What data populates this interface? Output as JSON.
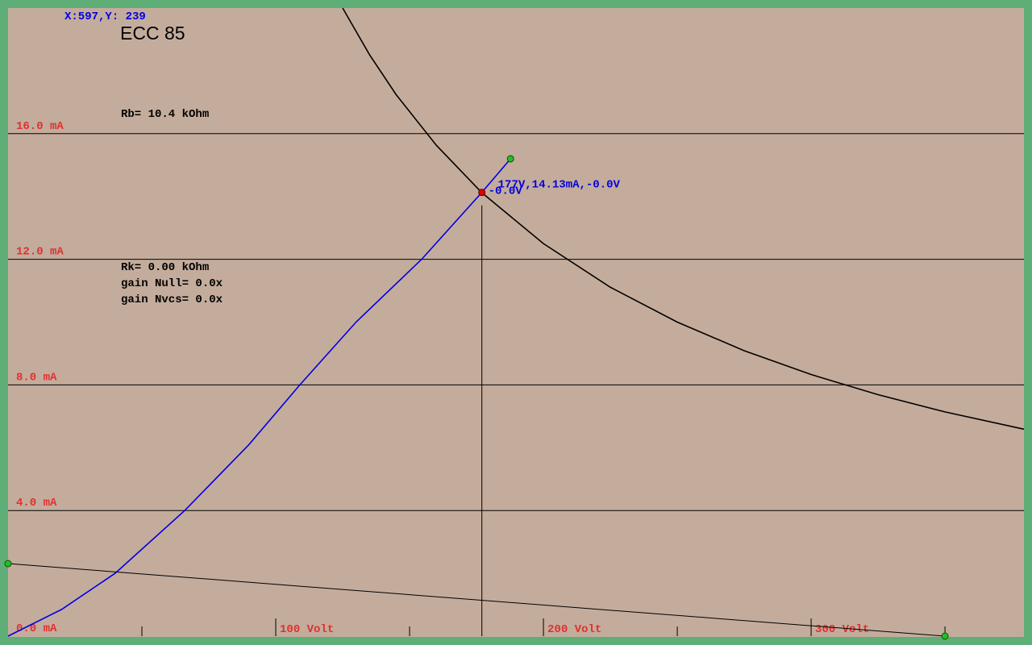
{
  "chart_data": {
    "type": "line",
    "title": "ECC 85",
    "cursor_readout": "X:597,Y: 239",
    "info_top": [
      "Rb= 10.4 kOhm"
    ],
    "info_mid": [
      "Rk= 0.00 kOhm",
      "gain Null= 0.0x",
      "gain Nvcs= 0.0x"
    ],
    "xlim": [
      0,
      379.5
    ],
    "ylim": [
      0,
      20
    ],
    "xticks": [
      {
        "value": 100,
        "label": "100 Volt"
      },
      {
        "value": 200,
        "label": "200 Volt"
      },
      {
        "value": 300,
        "label": "300 Volt"
      }
    ],
    "xminor_ticks": [
      50,
      150,
      250,
      350
    ],
    "yticks": [
      {
        "value": 0,
        "label": "0.0 mA"
      },
      {
        "value": 4,
        "label": "4.0 mA"
      },
      {
        "value": 8,
        "label": "8.0 mA"
      },
      {
        "value": 12,
        "label": "12.0 mA"
      },
      {
        "value": 16,
        "label": "16.0 mA"
      }
    ],
    "grid": true,
    "series": [
      {
        "color": "#0000e0",
        "x": [
          0,
          20,
          40,
          66,
          90,
          109,
          130,
          154.5,
          177,
          187.7
        ],
        "values": [
          0,
          0.85,
          2.0,
          4.0,
          6.1,
          8.0,
          10.0,
          12.0,
          14.13,
          15.2
        ],
        "endpoints": true
      },
      {
        "color": "#000000",
        "x": [
          125,
          135,
          145,
          160,
          177,
          200,
          225,
          250,
          275,
          300,
          325,
          350,
          379.5
        ],
        "values": [
          20,
          18.52,
          17.24,
          15.63,
          14.12,
          12.5,
          11.11,
          10,
          9.09,
          8.33,
          7.69,
          7.14,
          6.59
        ],
        "endpoints": false
      },
      {
        "color": "#000000",
        "x": [
          0,
          350
        ],
        "values": [
          2.31,
          0
        ],
        "endpoints": true
      }
    ],
    "operating_point": {
      "x": 177,
      "y": 14.13,
      "label": "177V,14.13mA,-0.0V",
      "grid_label": "-0.0V"
    }
  }
}
